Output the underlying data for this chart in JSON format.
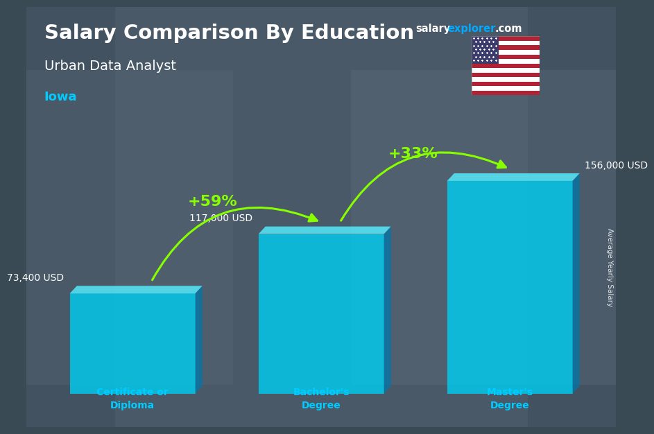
{
  "title_main": "Salary Comparison By Education",
  "subtitle": "Urban Data Analyst",
  "location": "Iowa",
  "categories": [
    "Certificate or\nDiploma",
    "Bachelor's\nDegree",
    "Master's\nDegree"
  ],
  "values": [
    73400,
    117000,
    156000
  ],
  "value_labels": [
    "73,400 USD",
    "117,000 USD",
    "156,000 USD"
  ],
  "pct_labels": [
    "+59%",
    "+33%"
  ],
  "bar_face_color": "#00ccee",
  "bar_side_color": "#0077aa",
  "bar_top_color": "#55eeff",
  "bg_color": "#3a4a55",
  "text_color_white": "#ffffff",
  "text_color_cyan": "#00ccff",
  "text_color_green": "#88ff00",
  "arrow_color": "#88ff00",
  "ylabel": "Average Yearly Salary",
  "bar_width": 0.38,
  "bar_positions": [
    0.18,
    0.5,
    0.82
  ],
  "ylim": [
    0,
    185000
  ],
  "flag_red": "#B22234",
  "flag_white": "#FFFFFF",
  "flag_blue": "#3C3B6E",
  "salary_color": "#ffffff",
  "explorer_color": "#00aaff"
}
